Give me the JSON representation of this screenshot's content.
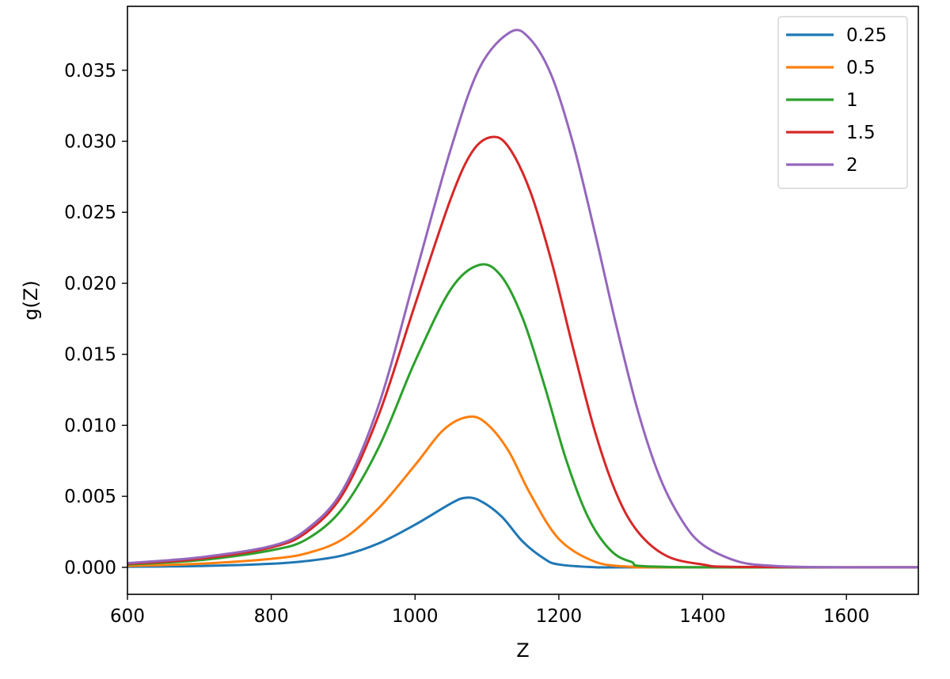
{
  "chart_data": {
    "type": "line",
    "xlabel": "Z",
    "ylabel": "g(Z)",
    "xlim": [
      600,
      1700
    ],
    "ylim": [
      -0.0019,
      0.0395
    ],
    "x_ticks": [
      600,
      800,
      1000,
      1200,
      1400,
      1600
    ],
    "y_ticks": [
      "0.000",
      "0.005",
      "0.010",
      "0.015",
      "0.020",
      "0.025",
      "0.030",
      "0.035"
    ],
    "grid": false,
    "legend_position": "top-right",
    "series": [
      {
        "name": "0.25",
        "color": "#1f77b4",
        "points": [
          [
            600,
            4e-05
          ],
          [
            700,
            9e-05
          ],
          [
            800,
            0.00025
          ],
          [
            850,
            0.00045
          ],
          [
            900,
            0.00085
          ],
          [
            950,
            0.0017
          ],
          [
            1000,
            0.003
          ],
          [
            1050,
            0.0045
          ],
          [
            1070,
            0.0049
          ],
          [
            1090,
            0.0047
          ],
          [
            1120,
            0.0036
          ],
          [
            1150,
            0.0018
          ],
          [
            1180,
            0.0006
          ],
          [
            1200,
            0.0002
          ],
          [
            1250,
            1e-05
          ],
          [
            1300,
            0.0
          ],
          [
            1700,
            0.0
          ]
        ]
      },
      {
        "name": "0.5",
        "color": "#ff7f0e",
        "points": [
          [
            600,
            0.0001
          ],
          [
            700,
            0.00025
          ],
          [
            800,
            0.0006
          ],
          [
            850,
            0.001
          ],
          [
            900,
            0.002
          ],
          [
            950,
            0.0042
          ],
          [
            1000,
            0.0072
          ],
          [
            1040,
            0.0097
          ],
          [
            1075,
            0.0106
          ],
          [
            1100,
            0.0101
          ],
          [
            1130,
            0.0082
          ],
          [
            1160,
            0.0052
          ],
          [
            1200,
            0.002
          ],
          [
            1250,
            0.0004
          ],
          [
            1300,
            4e-05
          ],
          [
            1350,
            0.0
          ],
          [
            1700,
            0.0
          ]
        ]
      },
      {
        "name": "1",
        "color": "#2ca02c",
        "points": [
          [
            600,
            0.0002
          ],
          [
            700,
            0.0005
          ],
          [
            800,
            0.0012
          ],
          [
            850,
            0.002
          ],
          [
            900,
            0.0042
          ],
          [
            950,
            0.0085
          ],
          [
            1000,
            0.0145
          ],
          [
            1050,
            0.0196
          ],
          [
            1090,
            0.0213
          ],
          [
            1120,
            0.0205
          ],
          [
            1150,
            0.0175
          ],
          [
            1180,
            0.0128
          ],
          [
            1210,
            0.0076
          ],
          [
            1240,
            0.0036
          ],
          [
            1270,
            0.0013
          ],
          [
            1300,
            0.0004
          ],
          [
            1350,
            3e-05
          ],
          [
            1700,
            0.0
          ]
        ]
      },
      {
        "name": "1.5",
        "color": "#d62728",
        "points": [
          [
            600,
            0.00025
          ],
          [
            700,
            0.0006
          ],
          [
            800,
            0.0014
          ],
          [
            850,
            0.0025
          ],
          [
            900,
            0.0052
          ],
          [
            950,
            0.0108
          ],
          [
            1000,
            0.0185
          ],
          [
            1050,
            0.026
          ],
          [
            1080,
            0.0293
          ],
          [
            1107,
            0.0303
          ],
          [
            1130,
            0.0296
          ],
          [
            1160,
            0.0265
          ],
          [
            1190,
            0.0215
          ],
          [
            1220,
            0.0154
          ],
          [
            1250,
            0.0096
          ],
          [
            1280,
            0.0052
          ],
          [
            1310,
            0.0025
          ],
          [
            1350,
            0.0008
          ],
          [
            1400,
            0.0002
          ],
          [
            1450,
            3e-05
          ],
          [
            1700,
            0.0
          ]
        ]
      },
      {
        "name": "2",
        "color": "#9467bd",
        "points": [
          [
            600,
            0.0003
          ],
          [
            700,
            0.0007
          ],
          [
            800,
            0.0015
          ],
          [
            850,
            0.0027
          ],
          [
            900,
            0.0055
          ],
          [
            950,
            0.0115
          ],
          [
            1000,
            0.0205
          ],
          [
            1050,
            0.0295
          ],
          [
            1090,
            0.0352
          ],
          [
            1133,
            0.0377
          ],
          [
            1160,
            0.0372
          ],
          [
            1190,
            0.0346
          ],
          [
            1220,
            0.0298
          ],
          [
            1250,
            0.0236
          ],
          [
            1280,
            0.017
          ],
          [
            1310,
            0.011
          ],
          [
            1340,
            0.0064
          ],
          [
            1370,
            0.0034
          ],
          [
            1400,
            0.0016
          ],
          [
            1450,
            0.0004
          ],
          [
            1500,
            0.0001
          ],
          [
            1550,
            2e-05
          ],
          [
            1600,
            0.0
          ],
          [
            1700,
            0.0
          ]
        ]
      }
    ]
  }
}
